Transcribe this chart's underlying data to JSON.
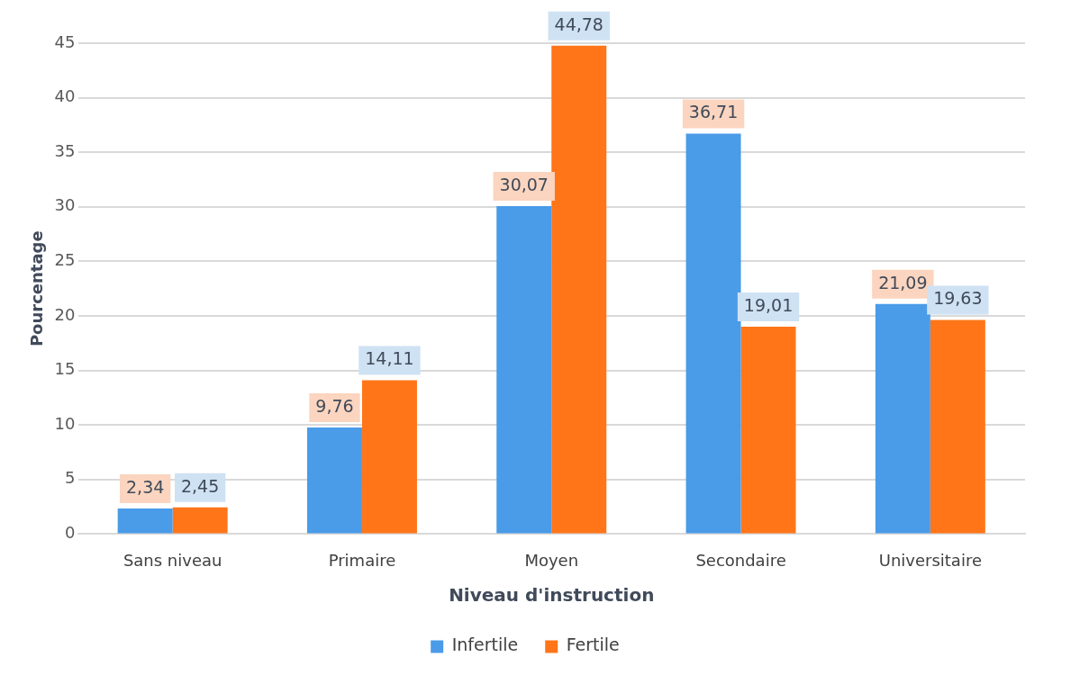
{
  "chart_data": {
    "type": "bar",
    "xlabel": "Niveau d'instruction",
    "ylabel": "Pourcentage",
    "categories": [
      "Sans niveau",
      "Primaire",
      "Moyen",
      "Secondaire",
      "Universitaire"
    ],
    "series": [
      {
        "name": "Infertile",
        "color": "#4a9be8",
        "values": [
          2.34,
          9.76,
          30.07,
          36.71,
          21.09
        ],
        "value_labels": [
          "2,34",
          "9,76",
          "30,07",
          "36,71",
          "21,09"
        ]
      },
      {
        "name": "Fertile",
        "color": "#ff7518",
        "values": [
          2.45,
          14.11,
          44.78,
          19.01,
          19.63
        ],
        "value_labels": [
          "2,45",
          "14,11",
          "44,78",
          "19,01",
          "19,63"
        ]
      }
    ],
    "ylim": [
      0,
      45
    ],
    "yticks": [
      0,
      5,
      10,
      15,
      20,
      25,
      30,
      35,
      40,
      45
    ],
    "grid": "y",
    "legend": "bottom"
  }
}
